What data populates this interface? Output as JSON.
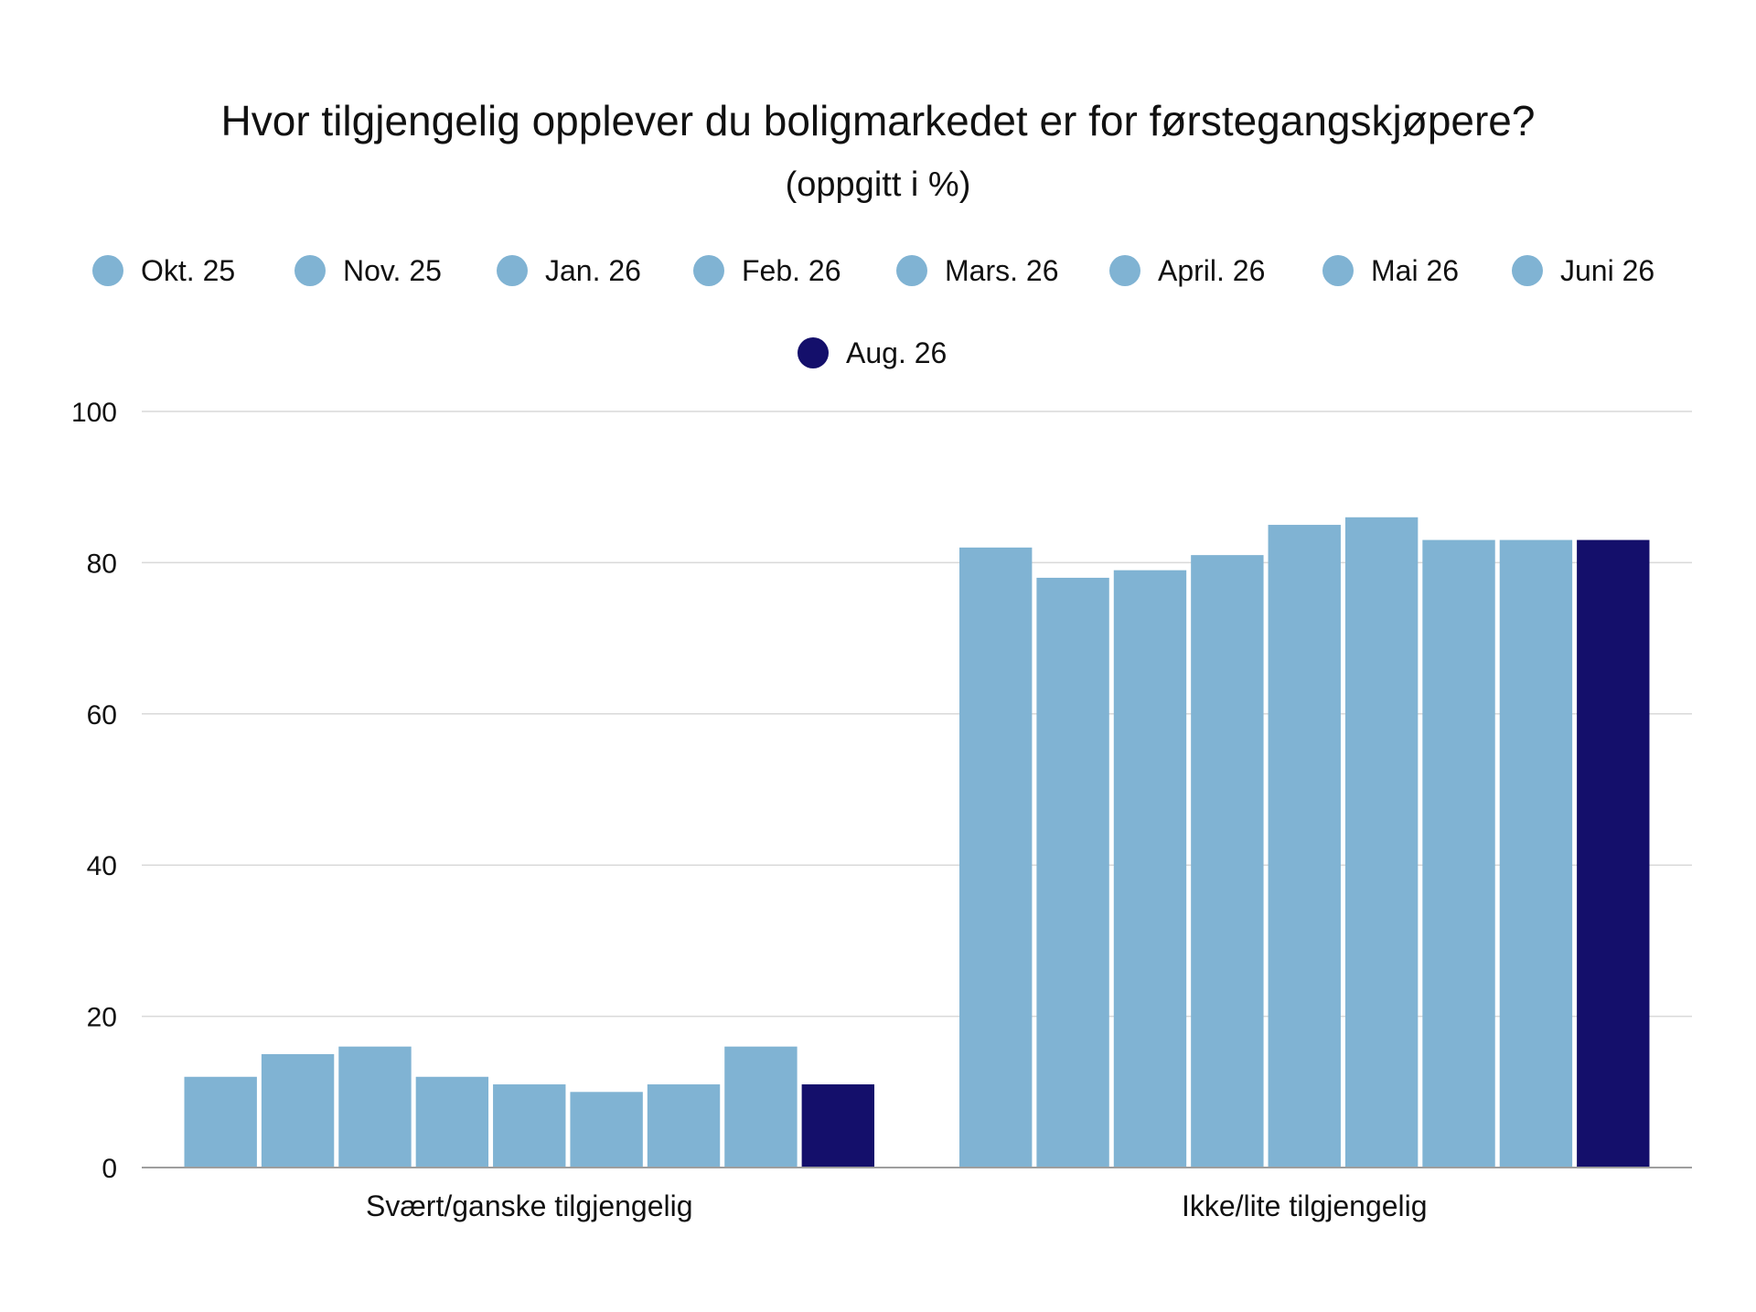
{
  "chart_data": {
    "type": "bar",
    "title": "Hvor tilgjengelig opplever du boligmarkedet er for førstegangskjøpere?",
    "subtitle": "(oppgitt i %)",
    "categories": [
      "Svært/ganske tilgjengelig",
      "Ikke/lite tilgjengelig"
    ],
    "series": [
      {
        "name": "Okt. 25",
        "color": "#80b3d3",
        "values": [
          12,
          82
        ]
      },
      {
        "name": "Nov. 25",
        "color": "#80b3d3",
        "values": [
          15,
          78
        ]
      },
      {
        "name": "Jan. 26",
        "color": "#80b3d3",
        "values": [
          16,
          79
        ]
      },
      {
        "name": "Feb. 26",
        "color": "#80b3d3",
        "values": [
          12,
          81
        ]
      },
      {
        "name": "Mars. 26",
        "color": "#80b3d3",
        "values": [
          11,
          85
        ]
      },
      {
        "name": "April. 26",
        "color": "#80b3d3",
        "values": [
          10,
          86
        ]
      },
      {
        "name": "Mai 26",
        "color": "#80b3d3",
        "values": [
          11,
          83
        ]
      },
      {
        "name": "Juni 26",
        "color": "#80b3d3",
        "values": [
          16,
          83
        ]
      },
      {
        "name": "Aug. 26",
        "color": "#140f6b",
        "values": [
          11,
          83
        ]
      }
    ],
    "yticks": [
      "0",
      "20",
      "40",
      "60",
      "80",
      "100"
    ],
    "ylim": [
      0,
      100
    ],
    "grid": true,
    "legend_position": "top"
  }
}
